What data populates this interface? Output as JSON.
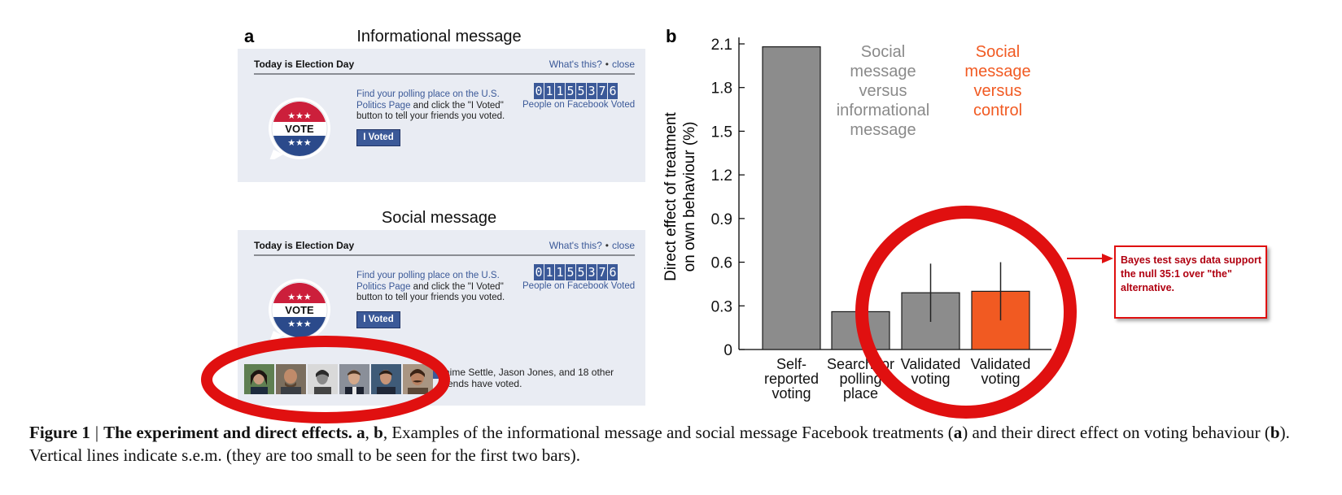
{
  "panel_a": {
    "letter": "a",
    "informational": {
      "title": "Informational message",
      "header": "Today is Election Day",
      "whats_this": "What's this?",
      "close": "close",
      "vote_badge_text": "VOTE",
      "message_link": "Find your polling place on the U.S. Politics Page",
      "message_rest": " and click the \"I Voted\" button to tell your friends you voted.",
      "button": "I Voted",
      "counter_digits": [
        "0",
        "1",
        "1",
        "5",
        "5",
        "3",
        "7",
        "6"
      ],
      "counter_caption": "People on Facebook Voted"
    },
    "social": {
      "title": "Social message",
      "header": "Today is Election Day",
      "whats_this": "What's this?",
      "close": "close",
      "vote_badge_text": "VOTE",
      "message_link": "Find your polling place on the U.S. Politics Page",
      "message_rest": " and click the \"I Voted\" button to tell your friends you voted.",
      "button": "I Voted",
      "counter_digits": [
        "0",
        "1",
        "1",
        "5",
        "5",
        "3",
        "7",
        "6"
      ],
      "counter_caption": "People on Facebook Voted",
      "friends_text": "Jaime Settle, Jason Jones, and 18 other friends have voted."
    }
  },
  "panel_b": {
    "letter": "b",
    "chart_data": {
      "type": "bar",
      "ylabel": "Direct effect of treatment\non own behaviour (%)",
      "ylim": [
        0,
        2.1
      ],
      "yticks": [
        "0",
        "0.3",
        "0.6",
        "0.9",
        "1.2",
        "1.5",
        "1.8",
        "2.1"
      ],
      "categories": [
        "Self-\nreported\nvoting",
        "Search for\npolling\nplace",
        "Validated\nvoting",
        "Validated\nvoting"
      ],
      "values": [
        2.08,
        0.26,
        0.39,
        0.4
      ],
      "errors": [
        0.0,
        0.0,
        0.2,
        0.2
      ],
      "bar_colors": [
        "#8c8c8c",
        "#8c8c8c",
        "#8c8c8c",
        "#f15a22"
      ],
      "group_labels": [
        {
          "text": "Social\nmessage\nversus\ninformational\nmessage",
          "color": "#8a8a8a"
        },
        {
          "text": "Social\nmessage\nversus\ncontrol",
          "color": "#f15a22"
        }
      ]
    }
  },
  "annotation": {
    "bayes_text": "Bayes test says data support the null 35:1 over \"the\" alternative.",
    "color": "#e01010"
  },
  "caption": {
    "figure": "Figure 1",
    "heading": "The experiment and direct effects.",
    "body_a": "a",
    "body_b": "b",
    "text1": ", Examples of the informational message and social message Facebook treatments (",
    "text2": ") and their direct effect on voting behaviour (",
    "text3": "). Vertical lines indicate s.e.m. (they are too small to be seen for the first two bars)."
  }
}
